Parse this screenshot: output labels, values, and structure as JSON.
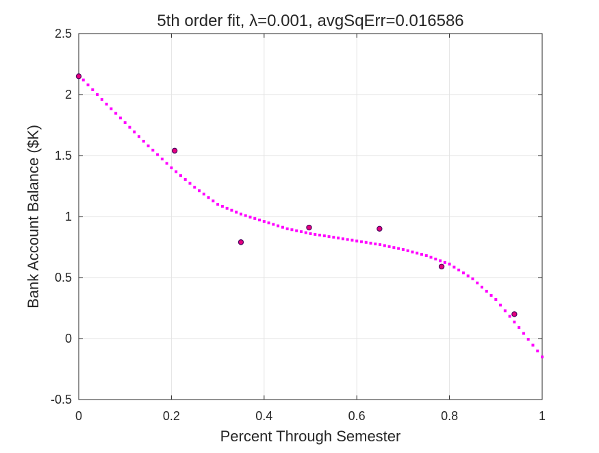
{
  "chart_data": {
    "type": "scatter",
    "title": "5th order fit, λ=0.001, avgSqErr=0.016586",
    "xlabel": "Percent Through Semester",
    "ylabel": "Bank Account Balance ($K)",
    "xlim": [
      0,
      1
    ],
    "ylim": [
      -0.5,
      2.5
    ],
    "xticks": [
      0,
      0.2,
      0.4,
      0.6,
      0.8,
      1
    ],
    "xtick_labels": [
      "0",
      "0.2",
      "0.4",
      "0.6",
      "0.8",
      "1"
    ],
    "yticks": [
      -0.5,
      0,
      0.5,
      1,
      1.5,
      2,
      2.5
    ],
    "ytick_labels": [
      "-0.5",
      "0",
      "0.5",
      "1",
      "1.5",
      "2",
      "2.5"
    ],
    "grid": true,
    "series": [
      {
        "kind": "points",
        "marker": "circle",
        "face_color": "#e6007e",
        "edge_color": "#4a0060",
        "x": [
          0.0,
          0.207,
          0.35,
          0.497,
          0.649,
          0.783,
          0.94
        ],
        "y": [
          2.15,
          1.54,
          0.79,
          0.91,
          0.9,
          0.59,
          0.2
        ]
      },
      {
        "kind": "fit",
        "style": "dotted",
        "color": "#ff00ff",
        "x": [
          0,
          0.05,
          0.1,
          0.15,
          0.2,
          0.25,
          0.3,
          0.35,
          0.4,
          0.45,
          0.5,
          0.55,
          0.6,
          0.65,
          0.7,
          0.75,
          0.8,
          0.85,
          0.9,
          0.95,
          1.0
        ],
        "y": [
          2.16,
          1.96,
          1.77,
          1.58,
          1.4,
          1.24,
          1.1,
          1.02,
          0.96,
          0.9,
          0.86,
          0.83,
          0.8,
          0.77,
          0.73,
          0.68,
          0.61,
          0.49,
          0.32,
          0.09,
          -0.15
        ]
      }
    ]
  }
}
